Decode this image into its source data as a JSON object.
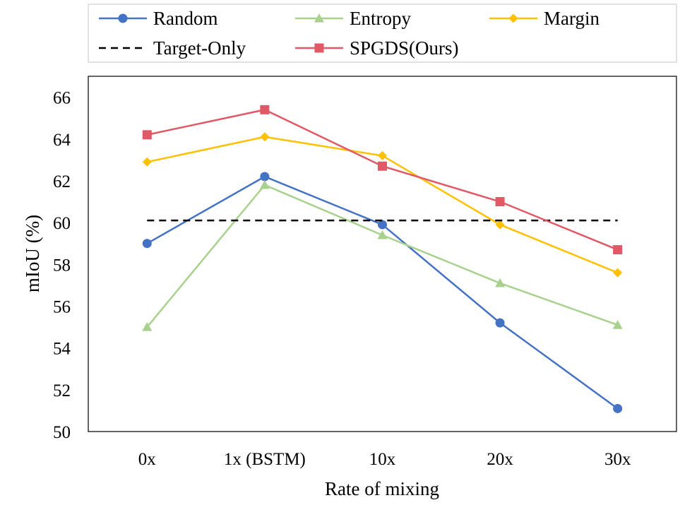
{
  "chart_data": {
    "type": "line",
    "categories": [
      "0x",
      "1x (BSTM)",
      "10x",
      "20x",
      "30x"
    ],
    "xlabel": "Rate of mixing",
    "ylabel": "mIoU (%)",
    "ylim": [
      50,
      67
    ],
    "yticks": [
      "50",
      "52",
      "54",
      "56",
      "58",
      "60",
      "62",
      "64",
      "66"
    ],
    "grid": false,
    "legend_position": "top",
    "series": [
      {
        "name": "Random",
        "values": [
          59.0,
          62.2,
          59.9,
          55.2,
          51.1
        ],
        "color": "#4472C4",
        "marker": "circle",
        "dash": "solid"
      },
      {
        "name": "Entropy",
        "values": [
          55.0,
          61.8,
          59.4,
          57.1,
          55.1
        ],
        "color": "#A9D18E",
        "marker": "triangle",
        "dash": "solid"
      },
      {
        "name": "Margin",
        "values": [
          62.9,
          64.1,
          63.2,
          59.9,
          57.6
        ],
        "color": "#FFC000",
        "marker": "diamond",
        "dash": "solid"
      },
      {
        "name": "Target-Only",
        "values": [
          60.1,
          60.1,
          60.1,
          60.1,
          60.1
        ],
        "color": "#000000",
        "marker": "none",
        "dash": "dashed"
      },
      {
        "name": "SPGDS(Ours)",
        "values": [
          64.2,
          65.4,
          62.7,
          61.0,
          58.7
        ],
        "color": "#E15866",
        "marker": "square",
        "dash": "solid"
      }
    ]
  }
}
